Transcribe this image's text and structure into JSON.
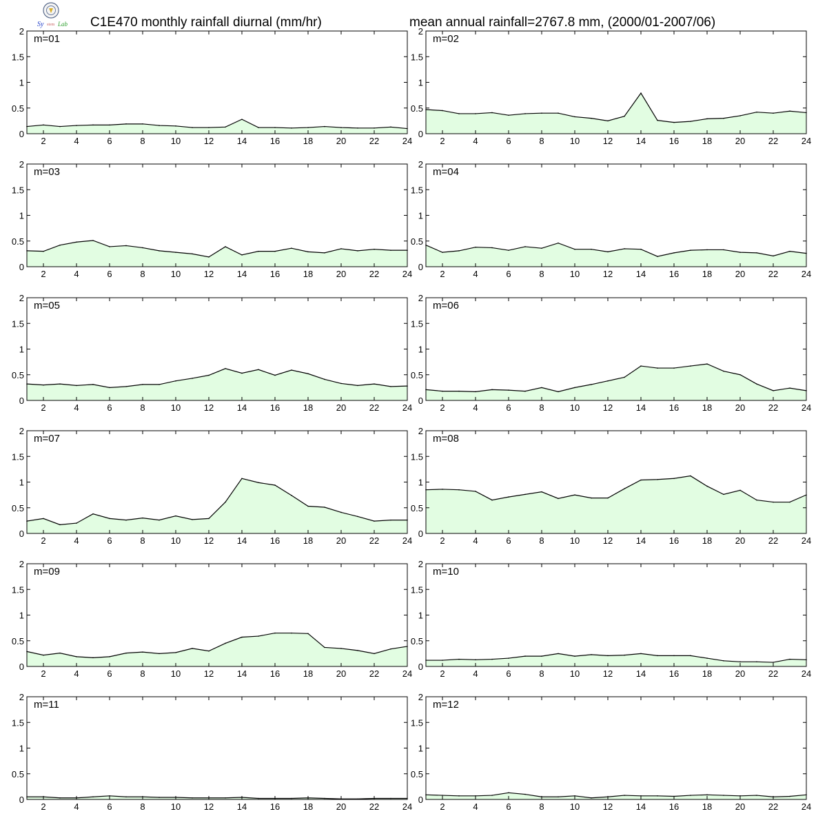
{
  "header": {
    "title": "C1E470 monthly rainfall diurnal (mm/hr)",
    "subtitle": "mean annual rainfall=2767.8 mm, (2000/01-2007/06)",
    "logo_icon": "lab-seal-logo"
  },
  "style": {
    "fill_color": "#e2fde2",
    "line_color": "#000000"
  },
  "chart_data": [
    {
      "type": "area",
      "label": "m=01",
      "x": [
        1,
        2,
        3,
        4,
        5,
        6,
        7,
        8,
        9,
        10,
        11,
        12,
        13,
        14,
        15,
        16,
        17,
        18,
        19,
        20,
        21,
        22,
        23,
        24
      ],
      "values": [
        0.14,
        0.17,
        0.14,
        0.16,
        0.17,
        0.17,
        0.19,
        0.19,
        0.16,
        0.15,
        0.12,
        0.12,
        0.13,
        0.28,
        0.12,
        0.12,
        0.11,
        0.12,
        0.14,
        0.12,
        0.11,
        0.11,
        0.13,
        0.1
      ],
      "xticks": [
        "2",
        "4",
        "6",
        "8",
        "10",
        "12",
        "14",
        "16",
        "18",
        "20",
        "22",
        "24"
      ],
      "yticks": [
        "0",
        "0.5",
        "1",
        "1.5",
        "2"
      ],
      "xlim": [
        1,
        24
      ],
      "ylim": [
        0,
        2
      ]
    },
    {
      "type": "area",
      "label": "m=02",
      "x": [
        1,
        2,
        3,
        4,
        5,
        6,
        7,
        8,
        9,
        10,
        11,
        12,
        13,
        14,
        15,
        16,
        17,
        18,
        19,
        20,
        21,
        22,
        23,
        24
      ],
      "values": [
        0.47,
        0.45,
        0.39,
        0.39,
        0.41,
        0.36,
        0.39,
        0.4,
        0.4,
        0.33,
        0.3,
        0.25,
        0.34,
        0.79,
        0.26,
        0.22,
        0.24,
        0.29,
        0.3,
        0.35,
        0.42,
        0.4,
        0.44,
        0.41
      ],
      "xticks": [
        "2",
        "4",
        "6",
        "8",
        "10",
        "12",
        "14",
        "16",
        "18",
        "20",
        "22",
        "24"
      ],
      "yticks": [
        "0",
        "0.5",
        "1",
        "1.5",
        "2"
      ],
      "xlim": [
        1,
        24
      ],
      "ylim": [
        0,
        2
      ]
    },
    {
      "type": "area",
      "label": "m=03",
      "x": [
        1,
        2,
        3,
        4,
        5,
        6,
        7,
        8,
        9,
        10,
        11,
        12,
        13,
        14,
        15,
        16,
        17,
        18,
        19,
        20,
        21,
        22,
        23,
        24
      ],
      "values": [
        0.31,
        0.3,
        0.42,
        0.48,
        0.51,
        0.39,
        0.41,
        0.37,
        0.31,
        0.28,
        0.25,
        0.19,
        0.39,
        0.23,
        0.3,
        0.3,
        0.36,
        0.29,
        0.27,
        0.35,
        0.31,
        0.34,
        0.32,
        0.32
      ],
      "xticks": [
        "2",
        "4",
        "6",
        "8",
        "10",
        "12",
        "14",
        "16",
        "18",
        "20",
        "22",
        "24"
      ],
      "yticks": [
        "0",
        "0.5",
        "1",
        "1.5",
        "2"
      ],
      "xlim": [
        1,
        24
      ],
      "ylim": [
        0,
        2
      ]
    },
    {
      "type": "area",
      "label": "m=04",
      "x": [
        1,
        2,
        3,
        4,
        5,
        6,
        7,
        8,
        9,
        10,
        11,
        12,
        13,
        14,
        15,
        16,
        17,
        18,
        19,
        20,
        21,
        22,
        23,
        24
      ],
      "values": [
        0.42,
        0.28,
        0.31,
        0.38,
        0.37,
        0.32,
        0.39,
        0.36,
        0.46,
        0.34,
        0.34,
        0.29,
        0.35,
        0.34,
        0.2,
        0.27,
        0.32,
        0.33,
        0.33,
        0.28,
        0.27,
        0.21,
        0.3,
        0.26
      ],
      "xticks": [
        "2",
        "4",
        "6",
        "8",
        "10",
        "12",
        "14",
        "16",
        "18",
        "20",
        "22",
        "24"
      ],
      "yticks": [
        "0",
        "0.5",
        "1",
        "1.5",
        "2"
      ],
      "xlim": [
        1,
        24
      ],
      "ylim": [
        0,
        2
      ]
    },
    {
      "type": "area",
      "label": "m=05",
      "x": [
        1,
        2,
        3,
        4,
        5,
        6,
        7,
        8,
        9,
        10,
        11,
        12,
        13,
        14,
        15,
        16,
        17,
        18,
        19,
        20,
        21,
        22,
        23,
        24
      ],
      "values": [
        0.32,
        0.3,
        0.32,
        0.29,
        0.31,
        0.25,
        0.27,
        0.31,
        0.31,
        0.38,
        0.43,
        0.49,
        0.62,
        0.53,
        0.6,
        0.49,
        0.59,
        0.52,
        0.41,
        0.33,
        0.29,
        0.32,
        0.27,
        0.28
      ],
      "xticks": [
        "2",
        "4",
        "6",
        "8",
        "10",
        "12",
        "14",
        "16",
        "18",
        "20",
        "22",
        "24"
      ],
      "yticks": [
        "0",
        "0.5",
        "1",
        "1.5",
        "2"
      ],
      "xlim": [
        1,
        24
      ],
      "ylim": [
        0,
        2
      ]
    },
    {
      "type": "area",
      "label": "m=06",
      "x": [
        1,
        2,
        3,
        4,
        5,
        6,
        7,
        8,
        9,
        10,
        11,
        12,
        13,
        14,
        15,
        16,
        17,
        18,
        19,
        20,
        21,
        22,
        23,
        24
      ],
      "values": [
        0.21,
        0.18,
        0.18,
        0.17,
        0.21,
        0.2,
        0.18,
        0.25,
        0.17,
        0.25,
        0.31,
        0.38,
        0.45,
        0.67,
        0.63,
        0.63,
        0.67,
        0.71,
        0.57,
        0.5,
        0.32,
        0.19,
        0.24,
        0.19
      ],
      "xticks": [
        "2",
        "4",
        "6",
        "8",
        "10",
        "12",
        "14",
        "16",
        "18",
        "20",
        "22",
        "24"
      ],
      "yticks": [
        "0",
        "0.5",
        "1",
        "1.5",
        "2"
      ],
      "xlim": [
        1,
        24
      ],
      "ylim": [
        0,
        2
      ]
    },
    {
      "type": "area",
      "label": "m=07",
      "x": [
        1,
        2,
        3,
        4,
        5,
        6,
        7,
        8,
        9,
        10,
        11,
        12,
        13,
        14,
        15,
        16,
        17,
        18,
        19,
        20,
        21,
        22,
        23,
        24
      ],
      "values": [
        0.24,
        0.29,
        0.17,
        0.2,
        0.38,
        0.29,
        0.26,
        0.3,
        0.26,
        0.34,
        0.27,
        0.29,
        0.61,
        1.07,
        0.99,
        0.94,
        0.74,
        0.53,
        0.51,
        0.41,
        0.33,
        0.24,
        0.26,
        0.26
      ],
      "xticks": [
        "2",
        "4",
        "6",
        "8",
        "10",
        "12",
        "14",
        "16",
        "18",
        "20",
        "22",
        "24"
      ],
      "yticks": [
        "0",
        "0.5",
        "1",
        "1.5",
        "2"
      ],
      "xlim": [
        1,
        24
      ],
      "ylim": [
        0,
        2
      ]
    },
    {
      "type": "area",
      "label": "m=08",
      "x": [
        1,
        2,
        3,
        4,
        5,
        6,
        7,
        8,
        9,
        10,
        11,
        12,
        13,
        14,
        15,
        16,
        17,
        18,
        19,
        20,
        21,
        22,
        23,
        24
      ],
      "values": [
        0.85,
        0.86,
        0.85,
        0.82,
        0.65,
        0.71,
        0.76,
        0.81,
        0.68,
        0.75,
        0.69,
        0.69,
        0.87,
        1.04,
        1.05,
        1.07,
        1.12,
        0.92,
        0.76,
        0.84,
        0.65,
        0.61,
        0.61,
        0.75
      ],
      "xticks": [
        "2",
        "4",
        "6",
        "8",
        "10",
        "12",
        "14",
        "16",
        "18",
        "20",
        "22",
        "24"
      ],
      "yticks": [
        "0",
        "0.5",
        "1",
        "1.5",
        "2"
      ],
      "xlim": [
        1,
        24
      ],
      "ylim": [
        0,
        2
      ]
    },
    {
      "type": "area",
      "label": "m=09",
      "x": [
        1,
        2,
        3,
        4,
        5,
        6,
        7,
        8,
        9,
        10,
        11,
        12,
        13,
        14,
        15,
        16,
        17,
        18,
        19,
        20,
        21,
        22,
        23,
        24
      ],
      "values": [
        0.29,
        0.22,
        0.26,
        0.19,
        0.17,
        0.19,
        0.26,
        0.28,
        0.25,
        0.27,
        0.35,
        0.3,
        0.45,
        0.57,
        0.59,
        0.65,
        0.65,
        0.64,
        0.37,
        0.35,
        0.31,
        0.25,
        0.34,
        0.39
      ],
      "xticks": [
        "2",
        "4",
        "6",
        "8",
        "10",
        "12",
        "14",
        "16",
        "18",
        "20",
        "22",
        "24"
      ],
      "yticks": [
        "0",
        "0.5",
        "1",
        "1.5",
        "2"
      ],
      "xlim": [
        1,
        24
      ],
      "ylim": [
        0,
        2
      ]
    },
    {
      "type": "area",
      "label": "m=10",
      "x": [
        1,
        2,
        3,
        4,
        5,
        6,
        7,
        8,
        9,
        10,
        11,
        12,
        13,
        14,
        15,
        16,
        17,
        18,
        19,
        20,
        21,
        22,
        23,
        24
      ],
      "values": [
        0.12,
        0.12,
        0.14,
        0.13,
        0.14,
        0.16,
        0.2,
        0.2,
        0.25,
        0.2,
        0.23,
        0.21,
        0.22,
        0.25,
        0.21,
        0.21,
        0.21,
        0.16,
        0.11,
        0.09,
        0.09,
        0.08,
        0.14,
        0.13
      ],
      "xticks": [
        "2",
        "4",
        "6",
        "8",
        "10",
        "12",
        "14",
        "16",
        "18",
        "20",
        "22",
        "24"
      ],
      "yticks": [
        "0",
        "0.5",
        "1",
        "1.5",
        "2"
      ],
      "xlim": [
        1,
        24
      ],
      "ylim": [
        0,
        2
      ]
    },
    {
      "type": "area",
      "label": "m=11",
      "x": [
        1,
        2,
        3,
        4,
        5,
        6,
        7,
        8,
        9,
        10,
        11,
        12,
        13,
        14,
        15,
        16,
        17,
        18,
        19,
        20,
        21,
        22,
        23,
        24
      ],
      "values": [
        0.05,
        0.05,
        0.03,
        0.03,
        0.05,
        0.07,
        0.05,
        0.05,
        0.04,
        0.04,
        0.03,
        0.03,
        0.03,
        0.04,
        0.02,
        0.02,
        0.02,
        0.03,
        0.02,
        0.01,
        0.01,
        0.02,
        0.02,
        0.02
      ],
      "xticks": [
        "2",
        "4",
        "6",
        "8",
        "10",
        "12",
        "14",
        "16",
        "18",
        "20",
        "22",
        "24"
      ],
      "yticks": [
        "0",
        "0.5",
        "1",
        "1.5",
        "2"
      ],
      "xlim": [
        1,
        24
      ],
      "ylim": [
        0,
        2
      ]
    },
    {
      "type": "area",
      "label": "m=12",
      "x": [
        1,
        2,
        3,
        4,
        5,
        6,
        7,
        8,
        9,
        10,
        11,
        12,
        13,
        14,
        15,
        16,
        17,
        18,
        19,
        20,
        21,
        22,
        23,
        24
      ],
      "values": [
        0.09,
        0.08,
        0.07,
        0.07,
        0.08,
        0.13,
        0.1,
        0.05,
        0.05,
        0.07,
        0.03,
        0.05,
        0.08,
        0.07,
        0.07,
        0.06,
        0.08,
        0.09,
        0.08,
        0.07,
        0.08,
        0.05,
        0.06,
        0.09
      ],
      "xticks": [
        "2",
        "4",
        "6",
        "8",
        "10",
        "12",
        "14",
        "16",
        "18",
        "20",
        "22",
        "24"
      ],
      "yticks": [
        "0",
        "0.5",
        "1",
        "1.5",
        "2"
      ],
      "xlim": [
        1,
        24
      ],
      "ylim": [
        0,
        2
      ]
    }
  ]
}
